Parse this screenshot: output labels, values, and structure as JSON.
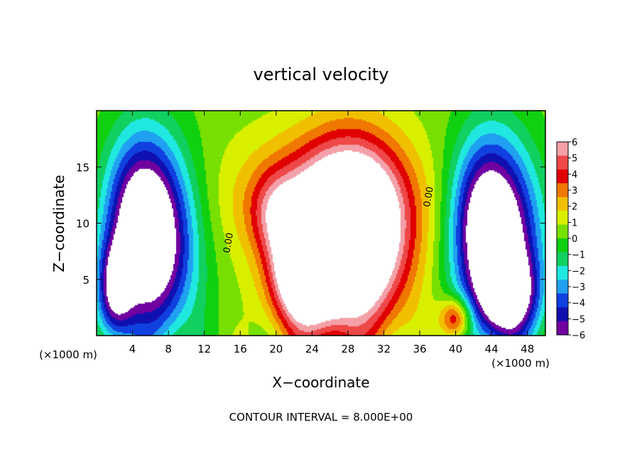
{
  "chart_data": {
    "type": "heatmap",
    "title": "vertical velocity",
    "xlabel": "X−coordinate",
    "ylabel": "Z−coordinate",
    "x_unit_label": "(×1000 m)",
    "y_unit_label": "(×1000 m)",
    "footer": "CONTOUR INTERVAL = 8.000E+00",
    "xlim": [
      0,
      50
    ],
    "ylim": [
      0,
      20
    ],
    "x_ticks": [
      4,
      8,
      12,
      16,
      20,
      24,
      28,
      32,
      36,
      40,
      44,
      48
    ],
    "x_tick_labels": [
      "4",
      "8",
      "12",
      "16",
      "20",
      "24",
      "28",
      "32",
      "36",
      "40",
      "44",
      "48"
    ],
    "y_ticks": [
      5,
      10,
      15
    ],
    "y_tick_labels": [
      "5",
      "10",
      "15"
    ],
    "colorbar": {
      "min": -6,
      "max": 6,
      "ticks": [
        6,
        5,
        4,
        3,
        2,
        1,
        0,
        -1,
        -2,
        -3,
        -4,
        -5,
        -6
      ],
      "tick_labels": [
        "6",
        "5",
        "4",
        "3",
        "2",
        "1",
        "0",
        "−1",
        "−2",
        "−3",
        "−4",
        "−5",
        "−6"
      ],
      "colors_top_to_bottom": [
        "#f4a0a8",
        "#ee4848",
        "#e00000",
        "#f07800",
        "#f0c000",
        "#d8f000",
        "#78e000",
        "#10d010",
        "#10d060",
        "#20e8e0",
        "#20a0f0",
        "#1040e0",
        "#1010b0",
        "#7000a0"
      ]
    },
    "contour_labels": [
      {
        "text": "0.00",
        "x": 15,
        "z": 8.2
      },
      {
        "text": "0.00",
        "x": 37.3,
        "z": 12.3
      }
    ],
    "field_features": [
      {
        "sign": "neg",
        "x": 6.5,
        "z": 8,
        "sx": 3.2,
        "sz": 6,
        "amp": -7.5
      },
      {
        "sign": "neg",
        "x": 4.5,
        "z": 11,
        "sx": 2.6,
        "sz": 5,
        "amp": -4
      },
      {
        "sign": "neg",
        "x": 2,
        "z": 4,
        "sx": 1.4,
        "sz": 3,
        "amp": -5.5
      },
      {
        "sign": "neg",
        "x": 45,
        "z": 8,
        "sx": 3.2,
        "sz": 6,
        "amp": -7.5
      },
      {
        "sign": "neg",
        "x": 43,
        "z": 10.5,
        "sx": 2.5,
        "sz": 5,
        "amp": -4
      },
      {
        "sign": "neg",
        "x": 46,
        "z": 3.5,
        "sx": 2.2,
        "sz": 2.5,
        "amp": -5
      },
      {
        "sign": "pos",
        "x": 28.5,
        "z": 8.5,
        "sx": 4,
        "sz": 5.5,
        "amp": 11
      },
      {
        "sign": "pos",
        "x": 23,
        "z": 5.5,
        "sx": 2.5,
        "sz": 3.5,
        "amp": 8
      },
      {
        "sign": "pos",
        "x": 25,
        "z": 12,
        "sx": 7,
        "sz": 4,
        "amp": 3.5
      },
      {
        "sign": "pos",
        "x": 20,
        "z": 11,
        "sx": 2,
        "sz": 2.5,
        "amp": 2.5
      },
      {
        "sign": "pos",
        "x": 40,
        "z": 1.5,
        "sx": 1.2,
        "sz": 1.3,
        "amp": 5
      }
    ]
  }
}
